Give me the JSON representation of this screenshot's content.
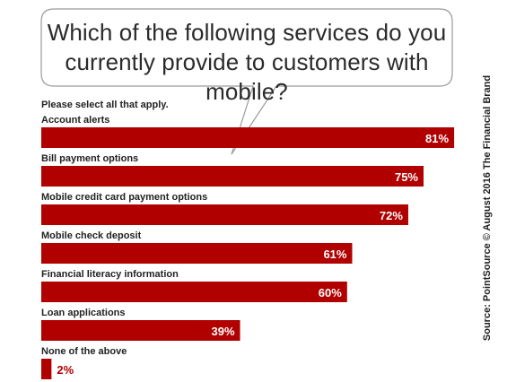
{
  "header": {
    "title": "Which of the following services do you currently provide to customers with mobile?",
    "subtitle": "Please select all that apply."
  },
  "source": "Source: PointSource © August 2016 The Financial Brand",
  "colors": {
    "bar": "#b00000",
    "bar_label": "#ffffff",
    "bar_label_outside": "#b00000",
    "text": "#222222"
  },
  "chart_data": {
    "type": "bar",
    "orientation": "horizontal",
    "categories": [
      "Account alerts",
      "Bill payment options",
      "Mobile credit card payment options",
      "Mobile check deposit",
      "Financial literacy information",
      "Loan applications",
      "None of the above"
    ],
    "values": [
      81,
      75,
      72,
      61,
      60,
      39,
      2
    ],
    "value_labels": [
      "81%",
      "75%",
      "72%",
      "61%",
      "60%",
      "39%",
      "2%"
    ],
    "unit": "%",
    "xlim": [
      0,
      100
    ],
    "grid": false,
    "legend": "none"
  }
}
